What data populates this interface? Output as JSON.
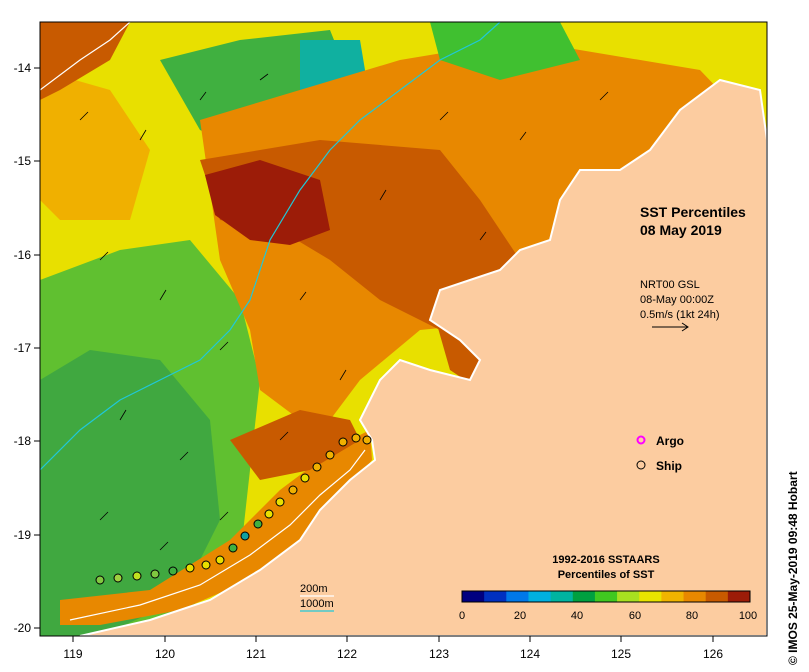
{
  "map": {
    "title_line1": "SST Percentiles",
    "title_line2": "08 May 2019",
    "x_ticks": [
      "119",
      "120",
      "121",
      "122",
      "123",
      "124",
      "125",
      "126"
    ],
    "y_ticks": [
      "-14",
      "-15",
      "-16",
      "-17",
      "-18",
      "-19",
      "-20"
    ],
    "current": {
      "line1": "NRT00 GSL",
      "line2": "08-May 00:00Z",
      "line3": "0.5m/s (1kt 24h)"
    },
    "depth_labels": [
      "200m",
      "1000m"
    ],
    "legend": [
      {
        "label": "Argo",
        "marker": "magenta-ring"
      },
      {
        "label": "Ship",
        "marker": "black-circle"
      }
    ],
    "colorbar": {
      "title_line1": "1992-2016 SSTAARS",
      "title_line2": "Percentiles of SST",
      "ticks": [
        "0",
        "20",
        "40",
        "60",
        "80",
        "100"
      ],
      "colors": [
        "#000080",
        "#0030c0",
        "#0078e8",
        "#00b0e0",
        "#00b4a0",
        "#00a040",
        "#40c820",
        "#a8e020",
        "#e8e400",
        "#f0b400",
        "#e88800",
        "#c85a00",
        "#9c1c08"
      ]
    },
    "credit": "© IMOS 25-May-2019 09:48 Hobart",
    "colors": {
      "land": "#fccca0",
      "coast": "#ffffff",
      "isobath_200": "#ffffff",
      "isobath_1000": "#20c8d8"
    }
  }
}
